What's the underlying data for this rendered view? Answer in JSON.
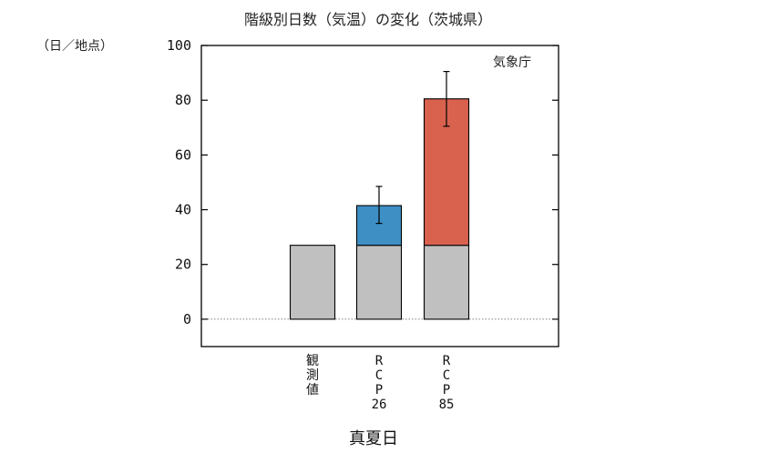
{
  "chart_data": {
    "type": "bar",
    "title": "階級別日数（気温）の変化（茨城県）",
    "unit_label": "（日／地点）",
    "source": "気象庁",
    "xlabel": "真夏日",
    "categories": [
      {
        "id": "obs",
        "lines": [
          "観",
          "測",
          "値"
        ]
      },
      {
        "id": "rcp26",
        "lines": [
          "R",
          "C",
          "P",
          "26"
        ]
      },
      {
        "id": "rcp85",
        "lines": [
          "R",
          "C",
          "P",
          "85"
        ]
      }
    ],
    "ylim": [
      -10,
      100
    ],
    "yticks": [
      0,
      20,
      40,
      60,
      80,
      100
    ],
    "baseline": 27,
    "series": [
      {
        "values": [
          27,
          27,
          27
        ],
        "color": "#c0c0c0"
      },
      {
        "values": [
          0,
          14.5,
          53.5
        ],
        "colors": [
          null,
          "#3d8fc4",
          "#d9624f"
        ]
      }
    ],
    "totals": [
      27,
      41.5,
      80.5
    ],
    "error_bars": [
      null,
      {
        "low": 35,
        "high": 48.5
      },
      {
        "low": 70.5,
        "high": 90.5
      }
    ]
  }
}
